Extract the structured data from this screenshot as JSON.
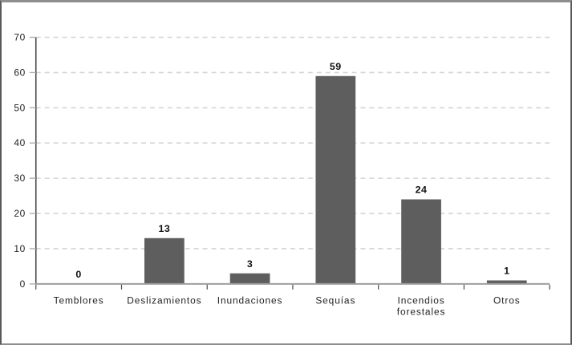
{
  "chart_data": {
    "type": "bar",
    "title": "",
    "xlabel": "",
    "ylabel": "",
    "categories": [
      "Temblores",
      "Deslizamientos",
      "Inundaciones",
      "Sequías",
      "Incendios forestales",
      "Otros"
    ],
    "values": [
      0,
      13,
      3,
      59,
      24,
      1
    ],
    "value_labels": [
      "0",
      "13",
      "3",
      "59",
      "24",
      "1"
    ],
    "ylim": [
      0,
      70
    ],
    "ytick_step": 10,
    "ytick_labels": [
      "0",
      "10",
      "20",
      "30",
      "40",
      "50",
      "60",
      "70"
    ],
    "grid": "horizontal-dashed",
    "legend": "none",
    "colors": {
      "bar_fill": "#5e5e5e",
      "gridline": "#d4d4d4",
      "y_axis_line": "#4a4a4a",
      "x_axis_line": "#9e9e9e",
      "y_tick": "#aeaeae",
      "x_tick": "#4a4a4a",
      "text": "#1a1a1a",
      "frame_border": "#8e8e8e",
      "background": "#ffffff"
    }
  }
}
